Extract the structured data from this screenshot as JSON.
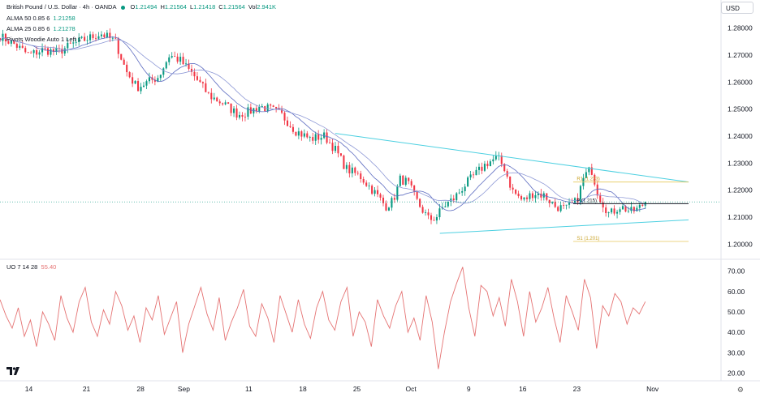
{
  "header": {
    "symbol": "British Pound / U.S. Dollar · 4h · OANDA",
    "ohlc": [
      {
        "label": "O",
        "value": "1.21494"
      },
      {
        "label": "H",
        "value": "1.21564"
      },
      {
        "label": "L",
        "value": "1.21418"
      },
      {
        "label": "C",
        "value": "1.21564"
      },
      {
        "label": "Vol",
        "value": "2.941K"
      }
    ],
    "indicators": [
      {
        "name": "ALMA 50 0.85 6",
        "value": "1.21258"
      },
      {
        "name": "ALMA 25 0.85 6",
        "value": "1.21278"
      },
      {
        "name": "Pivots Woodie Auto 1 Left 1",
        "value": ""
      }
    ],
    "currency": "USD",
    "uo_label": "UO 7 14 28",
    "uo_value": "55.40"
  },
  "colors": {
    "up": "#089981",
    "down": "#f23645",
    "trend": "#4dd0e1",
    "pivot": "#e6c85c",
    "alma": "#5c6bc0",
    "uo": "#e57373"
  },
  "chart_data": [
    {
      "type": "candlestick",
      "title": "British Pound / U.S. Dollar · 4h · OANDA",
      "ylim": [
        1.195,
        1.285
      ],
      "yticks": [
        "1.28000",
        "1.27000",
        "1.26000",
        "1.25000",
        "1.24000",
        "1.23000",
        "1.22000",
        "1.21000",
        "1.20000"
      ],
      "xticks": [
        {
          "label": "14",
          "x": 0.04
        },
        {
          "label": "21",
          "x": 0.12
        },
        {
          "label": "28",
          "x": 0.195
        },
        {
          "label": "Sep",
          "x": 0.255
        },
        {
          "label": "11",
          "x": 0.345
        },
        {
          "label": "18",
          "x": 0.42
        },
        {
          "label": "25",
          "x": 0.495
        },
        {
          "label": "Oct",
          "x": 0.57
        },
        {
          "label": "9",
          "x": 0.65
        },
        {
          "label": "16",
          "x": 0.725
        },
        {
          "label": "23",
          "x": 0.8
        },
        {
          "label": "Nov",
          "x": 0.905
        }
      ],
      "price_path": [
        [
          0.0,
          1.277
        ],
        [
          0.02,
          1.274
        ],
        [
          0.04,
          1.27
        ],
        [
          0.06,
          1.272
        ],
        [
          0.08,
          1.271
        ],
        [
          0.1,
          1.274
        ],
        [
          0.12,
          1.276
        ],
        [
          0.14,
          1.278
        ],
        [
          0.16,
          1.275
        ],
        [
          0.175,
          1.264
        ],
        [
          0.19,
          1.258
        ],
        [
          0.205,
          1.26
        ],
        [
          0.22,
          1.262
        ],
        [
          0.235,
          1.27
        ],
        [
          0.25,
          1.268
        ],
        [
          0.27,
          1.262
        ],
        [
          0.29,
          1.255
        ],
        [
          0.31,
          1.252
        ],
        [
          0.33,
          1.248
        ],
        [
          0.345,
          1.249
        ],
        [
          0.36,
          1.251
        ],
        [
          0.375,
          1.25
        ],
        [
          0.39,
          1.248
        ],
        [
          0.41,
          1.242
        ],
        [
          0.43,
          1.239
        ],
        [
          0.45,
          1.24
        ],
        [
          0.465,
          1.235
        ],
        [
          0.48,
          1.228
        ],
        [
          0.5,
          1.225
        ],
        [
          0.52,
          1.219
        ],
        [
          0.535,
          1.214
        ],
        [
          0.545,
          1.216
        ],
        [
          0.555,
          1.224
        ],
        [
          0.565,
          1.223
        ],
        [
          0.58,
          1.215
        ],
        [
          0.595,
          1.209
        ],
        [
          0.605,
          1.21
        ],
        [
          0.615,
          1.214
        ],
        [
          0.63,
          1.217
        ],
        [
          0.645,
          1.222
        ],
        [
          0.66,
          1.226
        ],
        [
          0.675,
          1.23
        ],
        [
          0.69,
          1.232
        ],
        [
          0.7,
          1.228
        ],
        [
          0.71,
          1.22
        ],
        [
          0.725,
          1.216
        ],
        [
          0.74,
          1.219
        ],
        [
          0.755,
          1.218
        ],
        [
          0.77,
          1.214
        ],
        [
          0.785,
          1.213
        ],
        [
          0.8,
          1.216
        ],
        [
          0.81,
          1.225
        ],
        [
          0.82,
          1.228
        ],
        [
          0.83,
          1.218
        ],
        [
          0.845,
          1.211
        ],
        [
          0.86,
          1.214
        ],
        [
          0.875,
          1.212
        ],
        [
          0.885,
          1.213
        ],
        [
          0.895,
          1.2156
        ]
      ],
      "pivots": [
        {
          "label": "R1 (1.223)",
          "value": 1.223
        },
        {
          "label": "P (1.215)",
          "value": 1.215
        },
        {
          "label": "S1 (1.201)",
          "value": 1.201
        }
      ],
      "triangle": {
        "upper": [
          [
            0.465,
            1.241
          ],
          [
            0.955,
            1.223
          ]
        ],
        "lower": [
          [
            0.61,
            1.204
          ],
          [
            0.955,
            1.209
          ]
        ]
      },
      "last_price": 1.21564
    },
    {
      "type": "line",
      "title": "UO 7 14 28",
      "ylim": [
        17,
        75
      ],
      "yticks": [
        "70.00",
        "60.00",
        "50.00",
        "40.00",
        "30.00",
        "20.00"
      ],
      "values": [
        56,
        48,
        42,
        52,
        38,
        46,
        33,
        50,
        44,
        36,
        58,
        47,
        40,
        55,
        62,
        45,
        38,
        51,
        44,
        60,
        53,
        41,
        48,
        35,
        52,
        46,
        58,
        39,
        47,
        55,
        30,
        44,
        53,
        62,
        49,
        41,
        57,
        36,
        45,
        52,
        61,
        43,
        38,
        54,
        47,
        35,
        58,
        49,
        40,
        56,
        44,
        37,
        52,
        60,
        46,
        41,
        55,
        62,
        38,
        50,
        45,
        33,
        56,
        48,
        42,
        53,
        60,
        40,
        47,
        36,
        58,
        45,
        22,
        40,
        55,
        64,
        72,
        52,
        38,
        63,
        60,
        48,
        57,
        43,
        66,
        55,
        38,
        60,
        45,
        52,
        62,
        47,
        35,
        58,
        50,
        41,
        66,
        57,
        32,
        53,
        48,
        59,
        55,
        44,
        52,
        49,
        55
      ]
    }
  ]
}
